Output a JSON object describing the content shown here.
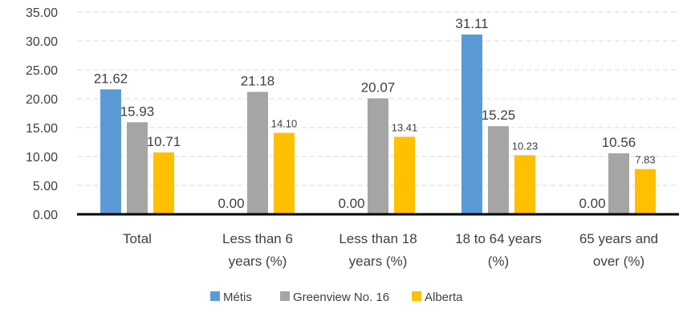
{
  "chart_data": {
    "type": "bar",
    "categories": [
      [
        "Total"
      ],
      [
        "Less than 6",
        "years (%)"
      ],
      [
        "Less than 18",
        "years (%)"
      ],
      [
        "18 to 64 years",
        "(%)"
      ],
      [
        "65 years and",
        "over (%)"
      ]
    ],
    "series": [
      {
        "name": "Métis",
        "color": "#5B9BD5",
        "values": [
          21.62,
          0.0,
          0.0,
          31.11,
          0.0
        ]
      },
      {
        "name": "Greenview No. 16",
        "color": "#A5A5A5",
        "values": [
          15.93,
          21.18,
          20.07,
          15.25,
          10.56
        ]
      },
      {
        "name": "Alberta",
        "color": "#FFC000",
        "values": [
          10.71,
          14.1,
          13.41,
          10.23,
          7.83
        ]
      }
    ],
    "yticks": [
      "0.00",
      "5.00",
      "10.00",
      "15.00",
      "20.00",
      "25.00",
      "30.00",
      "35.00"
    ],
    "ylim": [
      0,
      35
    ],
    "grid": "horizontal dashed",
    "legend_position": "bottom"
  }
}
